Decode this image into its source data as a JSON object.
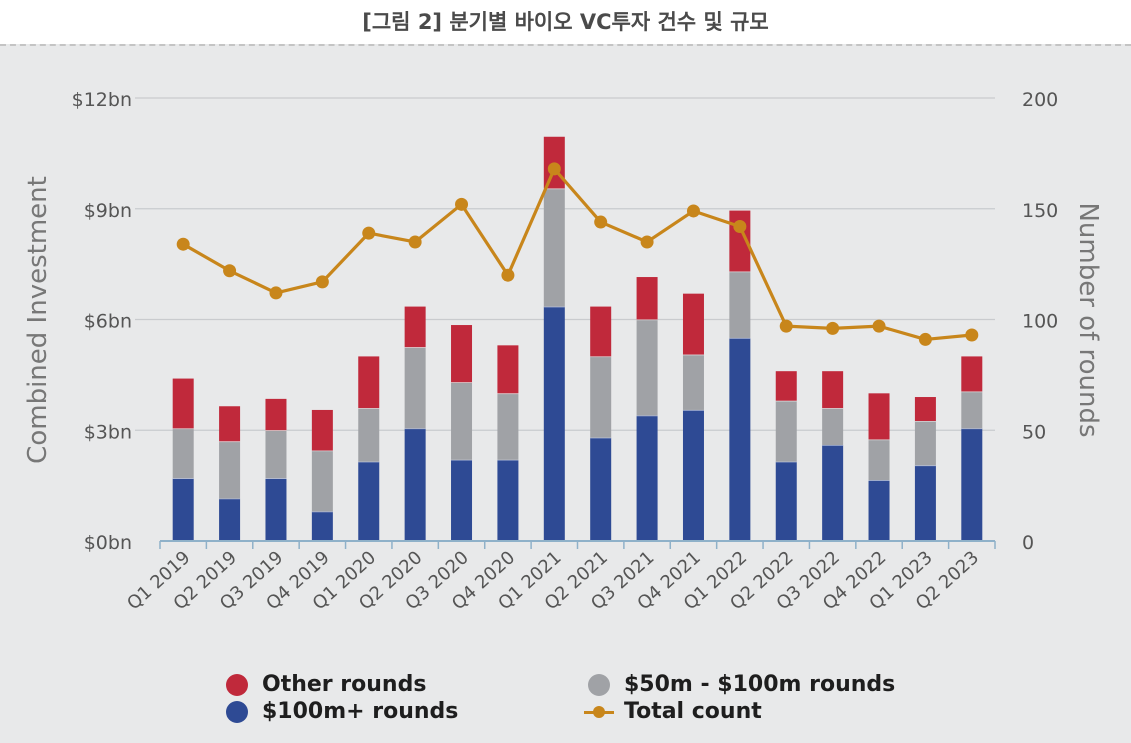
{
  "figure_title": "[그림 2] 분기별 바이오 VC투자 건수 및 규모",
  "colors": {
    "other_rounds": "#c0293b",
    "mid_rounds": "#a0a2a6",
    "large_rounds": "#2e4a94",
    "total_count": "#c8861b",
    "grid": "#c9cbce",
    "tick_text": "#555555"
  },
  "chart_data": {
    "type": "bar",
    "stacked": true,
    "categories": [
      "Q1 2019",
      "Q2 2019",
      "Q3 2019",
      "Q4 2019",
      "Q1 2020",
      "Q2 2020",
      "Q3 2020",
      "Q4 2020",
      "Q1 2021",
      "Q2 2021",
      "Q3 2021",
      "Q4 2021",
      "Q1 2022",
      "Q2 2022",
      "Q3 2022",
      "Q4 2022",
      "Q1 2023",
      "Q2 2023"
    ],
    "ylabel_left": "Combined Investment",
    "ylabel_right": "Number of rounds",
    "left_ticks": [
      "$0bn",
      "$3bn",
      "$6bn",
      "$9bn",
      "$12bn"
    ],
    "left_ylim": [
      0,
      12
    ],
    "right_ticks": [
      "0",
      "50",
      "100",
      "150",
      "200"
    ],
    "right_ylim": [
      0,
      200
    ],
    "grid": true,
    "legend_position": "bottom",
    "series": [
      {
        "name": "$100m+ rounds",
        "axis": "left",
        "unit": "bn",
        "values": [
          1.7,
          1.15,
          1.7,
          0.8,
          2.15,
          3.05,
          2.2,
          2.2,
          6.35,
          2.8,
          3.4,
          3.55,
          5.5,
          2.15,
          2.6,
          1.65,
          2.05,
          3.05
        ]
      },
      {
        "name": "$50m - $100m rounds",
        "axis": "left",
        "unit": "bn",
        "values": [
          1.35,
          1.55,
          1.3,
          1.65,
          1.45,
          2.2,
          2.1,
          1.8,
          3.2,
          2.2,
          2.6,
          1.5,
          1.8,
          1.65,
          1.0,
          1.1,
          1.2,
          1.0
        ]
      },
      {
        "name": "Other rounds",
        "axis": "left",
        "unit": "bn",
        "values": [
          1.35,
          0.95,
          0.85,
          1.1,
          1.4,
          1.1,
          1.55,
          1.3,
          1.4,
          1.35,
          1.15,
          1.65,
          1.65,
          0.8,
          1.0,
          1.25,
          0.65,
          0.95
        ]
      },
      {
        "name": "Total count",
        "type": "line",
        "axis": "right",
        "values": [
          134,
          122,
          112,
          117,
          139,
          135,
          152,
          120,
          168,
          144,
          135,
          149,
          142,
          97,
          96,
          97,
          91,
          93
        ]
      }
    ]
  }
}
